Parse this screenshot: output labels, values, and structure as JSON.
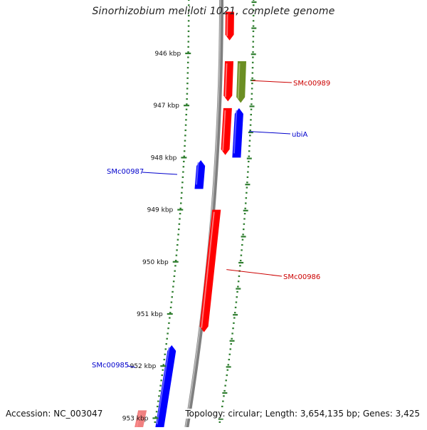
{
  "title": "Sinorhizobium meliloti 1021, complete genome",
  "footer": {
    "accession": "Accession: NC_003047",
    "summary": "Topology: circular; Length: 3,654,135 bp; Genes: 3,425"
  },
  "colors": {
    "forward_strand": "#ff0000",
    "reverse_strand": "#0000ff",
    "rna_or_other": "#6b8e23",
    "tick": "#2e7d2e",
    "backbone": "#8a8a8a"
  },
  "scale_ticks": [
    {
      "label": "946 kbp",
      "kbp": 946
    },
    {
      "label": "947 kbp",
      "kbp": 947
    },
    {
      "label": "948 kbp",
      "kbp": 948
    },
    {
      "label": "949 kbp",
      "kbp": 949
    },
    {
      "label": "950 kbp",
      "kbp": 950
    },
    {
      "label": "951 kbp",
      "kbp": 951
    },
    {
      "label": "952 kbp",
      "kbp": 952
    },
    {
      "label": "953 kbp",
      "kbp": 953
    }
  ],
  "genes": [
    {
      "id": "g1",
      "strand": "forward",
      "color": "#ff0000",
      "start_kbp": 945.2,
      "end_kbp": 945.75,
      "label": ""
    },
    {
      "id": "g2",
      "strand": "forward",
      "color": "#ff0000",
      "start_kbp": 946.15,
      "end_kbp": 946.92,
      "label": ""
    },
    {
      "id": "g3",
      "strand": "forward",
      "color": "#6b8e23",
      "start_kbp": 946.15,
      "end_kbp": 946.95,
      "label": "SMc00989"
    },
    {
      "id": "g4",
      "strand": "forward",
      "color": "#ff0000",
      "start_kbp": 947.05,
      "end_kbp": 947.95,
      "label": ""
    },
    {
      "id": "g5",
      "strand": "reverse",
      "color": "#0000ff",
      "start_kbp": 947.05,
      "end_kbp": 948.0,
      "label": "ubiA"
    },
    {
      "id": "g6",
      "strand": "reverse",
      "color": "#0000ff",
      "start_kbp": 948.05,
      "end_kbp": 948.6,
      "label": "SMc00987"
    },
    {
      "id": "g7",
      "strand": "forward",
      "color": "#ff0000",
      "start_kbp": 949.0,
      "end_kbp": 951.35,
      "label": "SMc00986"
    },
    {
      "id": "g8",
      "strand": "reverse",
      "color": "#0000ff",
      "start_kbp": 951.6,
      "end_kbp": 953.2,
      "label": "SMc00985"
    },
    {
      "id": "g9",
      "strand": "forward",
      "color": "#f08080",
      "start_kbp": 952.85,
      "end_kbp": 953.3,
      "label": ""
    }
  ]
}
